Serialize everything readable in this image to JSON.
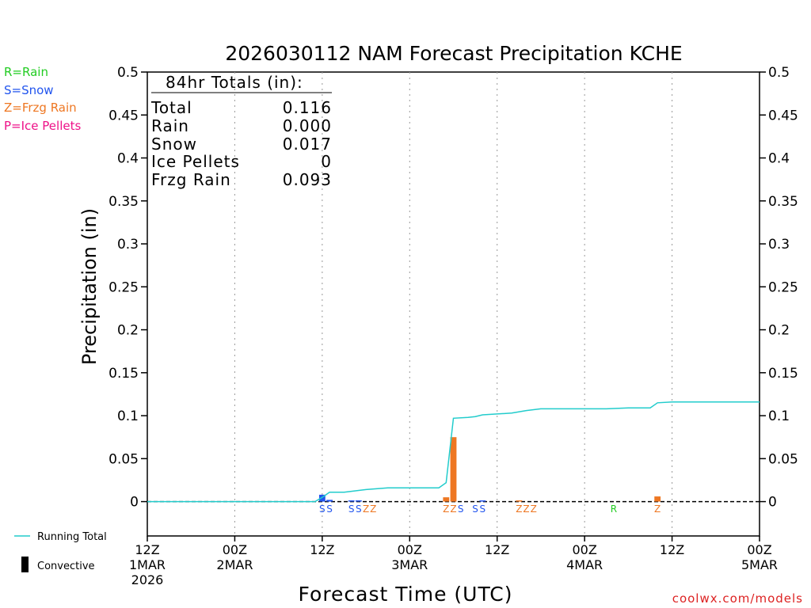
{
  "chart_data": {
    "type": "bar",
    "title": "2026030112 NAM Forecast Precipitation KCHE",
    "xlabel": "Forecast Time (UTC)",
    "ylabel": "Precipitation (in)",
    "ylim": [
      -0.04,
      0.5
    ],
    "xlim_hours": [
      0,
      84
    ],
    "y_ticks": [
      "0.5",
      "0.45",
      "0.4",
      "0.35",
      "0.3",
      "0.25",
      "0.2",
      "0.15",
      "0.1",
      "0.05",
      "0"
    ],
    "y_tick_values": [
      0.5,
      0.45,
      0.4,
      0.35,
      0.3,
      0.25,
      0.2,
      0.15,
      0.1,
      0.05,
      0
    ],
    "x_ticks": [
      {
        "hour": 0,
        "line1": "12Z",
        "line2": "1MAR",
        "line3": "2026"
      },
      {
        "hour": 12,
        "line1": "00Z",
        "line2": "2MAR",
        "line3": ""
      },
      {
        "hour": 24,
        "line1": "12Z",
        "line2": "",
        "line3": ""
      },
      {
        "hour": 36,
        "line1": "00Z",
        "line2": "3MAR",
        "line3": ""
      },
      {
        "hour": 48,
        "line1": "12Z",
        "line2": "",
        "line3": ""
      },
      {
        "hour": 60,
        "line1": "00Z",
        "line2": "4MAR",
        "line3": ""
      },
      {
        "hour": 72,
        "line1": "12Z",
        "line2": "",
        "line3": ""
      },
      {
        "hour": 84,
        "line1": "00Z",
        "line2": "5MAR",
        "line3": ""
      }
    ],
    "legend_types": [
      {
        "label": "R=Rain",
        "color": "#22cc22"
      },
      {
        "label": "S=Snow",
        "color": "#2255ee"
      },
      {
        "label": "Z=Frzg Rain",
        "color": "#ee7722"
      },
      {
        "label": "P=Ice Pellets",
        "color": "#ee1188"
      }
    ],
    "legend_lines": [
      {
        "label": "Running Total",
        "color": "#22cccc"
      },
      {
        "label": "Convective",
        "color": "#000000"
      }
    ],
    "totals": {
      "heading": "84hr Totals (in):",
      "rows": [
        {
          "label": "Total",
          "value": "0.116"
        },
        {
          "label": "Rain",
          "value": "0.000"
        },
        {
          "label": "Snow",
          "value": "0.017"
        },
        {
          "label": "Ice Pellets",
          "value": "0"
        },
        {
          "label": "Frzg Rain",
          "value": "0.093"
        }
      ]
    },
    "bars": [
      {
        "hour": 24,
        "value": 0.008,
        "type": "S"
      },
      {
        "hour": 25,
        "value": 0.002,
        "type": "S"
      },
      {
        "hour": 28,
        "value": 0.001,
        "type": "S"
      },
      {
        "hour": 29,
        "value": 0.001,
        "type": "S"
      },
      {
        "hour": 41,
        "value": 0.005,
        "type": "Z"
      },
      {
        "hour": 42,
        "value": 0.075,
        "type": "Z"
      },
      {
        "hour": 46,
        "value": 0.001,
        "type": "S"
      },
      {
        "hour": 51,
        "value": 0.001,
        "type": "Z"
      },
      {
        "hour": 70,
        "value": 0.006,
        "type": "Z"
      }
    ],
    "type_labels": [
      {
        "hour": 24,
        "text": "S",
        "type": "S"
      },
      {
        "hour": 25,
        "text": "S",
        "type": "S"
      },
      {
        "hour": 28,
        "text": "S",
        "type": "S"
      },
      {
        "hour": 29,
        "text": "S",
        "type": "S"
      },
      {
        "hour": 30,
        "text": "Z",
        "type": "Z"
      },
      {
        "hour": 31,
        "text": "Z",
        "type": "Z"
      },
      {
        "hour": 41,
        "text": "Z",
        "type": "Z"
      },
      {
        "hour": 42,
        "text": "Z",
        "type": "Z"
      },
      {
        "hour": 43,
        "text": "S",
        "type": "S"
      },
      {
        "hour": 45,
        "text": "S",
        "type": "S"
      },
      {
        "hour": 46,
        "text": "S",
        "type": "S"
      },
      {
        "hour": 51,
        "text": "Z",
        "type": "Z"
      },
      {
        "hour": 52,
        "text": "Z",
        "type": "Z"
      },
      {
        "hour": 53,
        "text": "Z",
        "type": "Z"
      },
      {
        "hour": 64,
        "text": "R",
        "type": "R"
      },
      {
        "hour": 70,
        "text": "Z",
        "type": "Z"
      }
    ],
    "running_total": {
      "hours": [
        0,
        23,
        24,
        25,
        27,
        30,
        33,
        36,
        39,
        40,
        41,
        42,
        44,
        45,
        46,
        48,
        50,
        52,
        54,
        60,
        63,
        66,
        69,
        70,
        72,
        84
      ],
      "values": [
        0,
        0,
        0.005,
        0.011,
        0.011,
        0.014,
        0.016,
        0.016,
        0.016,
        0.016,
        0.022,
        0.097,
        0.098,
        0.099,
        0.101,
        0.102,
        0.103,
        0.106,
        0.108,
        0.108,
        0.108,
        0.109,
        0.109,
        0.115,
        0.116,
        0.116
      ]
    }
  },
  "credit": "coolwx.com/models"
}
